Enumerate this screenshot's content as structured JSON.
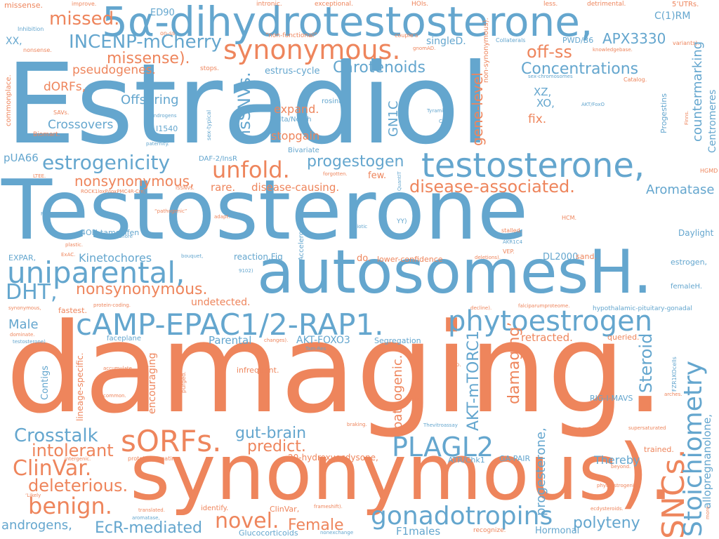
{
  "palette": {
    "blue": "#64a6ce",
    "orange": "#ee855c",
    "background": "#ffffff"
  },
  "words": {
    "estradiol": "Estradiol",
    "testosterone_big": "Testosterone",
    "damaging": "damaging.",
    "synonymous_paren": "synonymous).",
    "dht5a": "5α-dihydrotestosterone,",
    "autosomes": "autosomesH.",
    "synonymous_dot": "synonymous.",
    "testosterone_comma": "testosterone,",
    "camp": "cAMP-EPAC1/2-RAP1.",
    "phytoestrogen": "phytoestrogen",
    "uniparental": "uniparental,",
    "sorfs": "sORFs.",
    "sncs": "SNCs.",
    "stoichiometry": "Stoichiometry",
    "plagl2": "PLAGL2",
    "gonadotropins": "gonadotropins",
    "unfold": "unfold.",
    "estrogenicity": "estrogenicity",
    "dht": "DHT,",
    "benign": "benign.",
    "clinvar_dot": "ClinVar.",
    "crosstalk": "Crosstalk",
    "incenp": "INCENP-mCherry",
    "missed": "missed.",
    "missense_paren": "missense).",
    "novel": "novel.",
    "deleterious": "deleterious.",
    "intolerant": "intolerant",
    "disease_associated": "disease-associated.",
    "nonsynonymous_dot": "nonsynonymous.",
    "nonsynonymous_comma": "nonsynonymous,",
    "progestogen": "progestogen",
    "off_ss": "off-ss",
    "concentrations": "Concentrations",
    "carotenoids": "Carotenoids",
    "countermarking": "countermarking",
    "apx3330": "APX3330",
    "steroid": "Steroid",
    "akt_mtorc1": "AKT-mTORC1",
    "damaging_q": "damaging’",
    "gene_level": "gene-level",
    "polyteny": "polyteny",
    "ecr_mediated": "EcR-mediated",
    "female": "Female",
    "androgens": "androgens,",
    "gut_brain": "gut-brain",
    "predict": "predict.",
    "nssnvs": "nsSNVs.",
    "gn1c": "GN1C",
    "aromatase": "Aromatase",
    "progesterone_comma": "progesterone,",
    "allopregnanolone": "allopregnanolone,",
    "pathogenic_dot": "pathogenic.",
    "male": "Male",
    "offspring": "Offspring",
    "crossovers": "Crossovers",
    "pseudogenes": "pseudogenes.",
    "dorfs": "dORFs,",
    "kinetochores": "Kinetochores",
    "expand": "expand.",
    "stopgain": "stopgain",
    "rare": "rare.",
    "disease_causing": "disease-causing.",
    "undetected": "undetected.",
    "retracted": "retracted.",
    "fix": "fix.",
    "xz": "XZ,",
    "xo": "XO,",
    "daylight": "Daylight",
    "hormonal": "Hormonal",
    "f1males": "F1males",
    "encouraging": "encouraging",
    "parental": "Parental",
    "akt_foxo3": "AKT-FOXO3",
    "segregation": "Segregation",
    "thereby": "Thereby",
    "pua66": "pUA66",
    "xx": "XX,",
    "ed90": "ED90",
    "c1rm": "C(1)RM",
    "five_utrs": "5’UTRs.",
    "less": "less.",
    "detrimental": "detrimental.",
    "exceptional": "exceptional.",
    "hois": "HOIs.",
    "intronic": "intronic.",
    "improve": "improve.",
    "missense_dot": "missense.",
    "inhibition": "Inhibition",
    "on_ss": "on-ss",
    "non_functional": "“non-functional”",
    "couples": "couple’s",
    "collaterals": "Collaterals",
    "pwd_b6": "PWD/B6",
    "variants": "variants).",
    "knowledgebase": "knowledgebase.",
    "gnomad": "gnomAD.",
    "singled": "singleD.",
    "nonsynonymous_paren": "non-synonymous).",
    "nonsense": "nonsense.",
    "stops": "stops.",
    "estrus_cycle": "estrus-cycle",
    "commonplace": "commonplace.",
    "catalog": "Catalog.",
    "sex_chromosomes": "sex-chromosomes",
    "progestins": "Progestins",
    "centromeres": "Centromeres",
    "finns": "Finns.",
    "rosina": "rosina,",
    "delta_notch": "Delta/Notch",
    "akt_foxo": "AKT/FoxO",
    "tyramine": "Tyramine",
    "ca12": "CA12",
    "androgens_small": "Androgens",
    "sex_typical": "sex-typical",
    "savs": "SAVs.",
    "biomart": "Biomart.",
    "i1540": "I1540",
    "paternity": "paternity.",
    "bivariate": "Bivariate",
    "daf2": "DAF-2/InsR",
    "forgotten": "forgotten.",
    "few": "few.",
    "ltee": "LTEE.",
    "rock1": "ROCK1loxP/loxPMC4R-Cre;",
    "issnvs": "ISSNVs.",
    "quantit": "QuantIT",
    "hgmd": "HGMD",
    "fz_pcp": "Fz/PCP",
    "pathogenic_q": "“pathogenic”",
    "adapt": "adapt.",
    "accelerometers": "Accelerometers",
    "meiotic": "Meiotic",
    "yy": "YY)",
    "hcm": "HCM.",
    "four_oh": "4OH-tamoxifen",
    "kinetochore": "Kinetochore",
    "plastic": "plastic.",
    "exac": "ExAC.",
    "expar": "EXPAR,",
    "bouquet": "bouquet,",
    "reaction_fig": "reaction.Fig",
    "do": "do.",
    "lower_confidence": "lower-confidence",
    "deletions": "deletions).",
    "dl2000": "DL2000",
    "sand": "sand.",
    "vep": "VEP.",
    "akr1c4": "AKR1C4",
    "stalled": "stalled.",
    "estrogen": "estrogen,",
    "femaleh": "femaleH.",
    "n9102": "9102)",
    "synonymous_small": "synonymous,",
    "fastest": "fastest.",
    "protein_coding": "protein-coding.",
    "decline": "decline).",
    "falciparum": "falciparumproteome.",
    "hpg": "hypothalamic-pituitary-gonadal",
    "queried": "queried.",
    "changes": "changes).",
    "faceplane": "faceplane",
    "tam_res": "Tam-Res",
    "dominate": "dominate.",
    "testosterone_paren": "testosterone)",
    "contigs": "Contigs",
    "lineage_specific": "lineage-specific.",
    "accumulate": "accumulate.",
    "common": "common.",
    "purged": "purged.",
    "infrequent": "infrequent.",
    "drop": "drop.",
    "easily": "easily.",
    "arches": "arches.",
    "fzr1": "FZR1KOcells",
    "rig_i": "RIG-I-MAVS",
    "braking": "braking.",
    "thevitro": "Thevitroassay",
    "arose": "arose.",
    "supersaturated": "supersaturated",
    "trained": "trained.",
    "intergenic": "intergenic.",
    "protein_truncating": "protein-truncating",
    "hydroxyecdysone": "20-hydroxyecdysone,",
    "atr_chk1": "ATR/Chk1",
    "ga_pair": "GA-PAIR",
    "beyond": "beyond.",
    "likely": "‘Likely",
    "phytoestrogenic": "phytoestrogenic",
    "translated": "translated.",
    "identify": "identify.",
    "clinvar_comma": "ClinVar,",
    "frameshift": "frameshift).",
    "ecdysteroids": "ecdysteroids.",
    "more": "more.",
    "glucocorticoids": "Glucocorticoids",
    "nonexchange": "nonexchange",
    "recognize": "recognize.",
    "aromatase_small": "aromatase,"
  }
}
